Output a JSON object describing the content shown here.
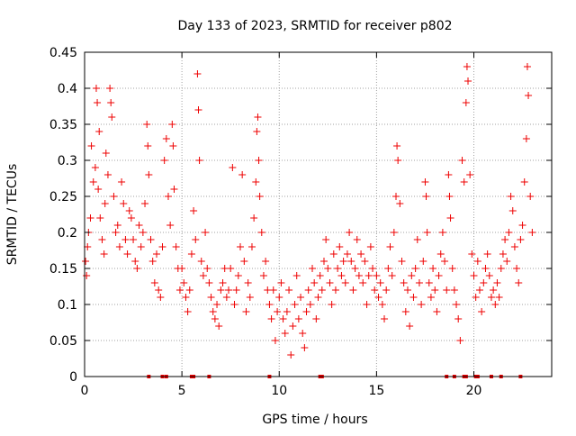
{
  "chart_data": {
    "type": "scatter",
    "title": "Day 133 of 2023, SRMTID for receiver p802",
    "xlabel": "GPS time / hours",
    "ylabel": "SRMTID / TECUs",
    "xlim": [
      0,
      24
    ],
    "ylim": [
      0,
      0.45
    ],
    "x_ticks": [
      0,
      5,
      10,
      15,
      20
    ],
    "y_ticks": [
      0,
      0.05,
      0.1,
      0.15,
      0.2,
      0.25,
      0.3,
      0.35,
      0.4,
      0.45
    ],
    "x_tick_labels": [
      "0",
      "5",
      "10",
      "15",
      "20"
    ],
    "y_tick_labels": [
      "0",
      "0.05",
      "0.1",
      "0.15",
      "0.2",
      "0.25",
      "0.3",
      "0.35",
      "0.4",
      "0.45"
    ],
    "grid": true,
    "marker": "plus",
    "color": "#ee0000",
    "baseline_points_x": [
      3.3,
      4.0,
      4.2,
      5.5,
      5.6,
      6.4,
      9.5,
      12.1,
      12.2,
      18.6,
      19.0,
      19.5,
      19.6,
      20.1,
      20.2,
      20.9,
      21.4,
      22.4
    ],
    "series": [
      {
        "name": "SRMTID",
        "points": [
          [
            0.05,
            0.16
          ],
          [
            0.1,
            0.14
          ],
          [
            0.15,
            0.18
          ],
          [
            0.2,
            0.2
          ],
          [
            0.3,
            0.22
          ],
          [
            0.35,
            0.32
          ],
          [
            0.45,
            0.27
          ],
          [
            0.55,
            0.29
          ],
          [
            0.6,
            0.4
          ],
          [
            0.65,
            0.38
          ],
          [
            0.7,
            0.26
          ],
          [
            0.75,
            0.34
          ],
          [
            0.8,
            0.22
          ],
          [
            0.9,
            0.19
          ],
          [
            1.0,
            0.17
          ],
          [
            1.05,
            0.24
          ],
          [
            1.1,
            0.31
          ],
          [
            1.2,
            0.28
          ],
          [
            1.3,
            0.4
          ],
          [
            1.35,
            0.38
          ],
          [
            1.4,
            0.36
          ],
          [
            1.5,
            0.25
          ],
          [
            1.6,
            0.2
          ],
          [
            1.7,
            0.21
          ],
          [
            1.8,
            0.18
          ],
          [
            1.9,
            0.27
          ],
          [
            2.0,
            0.24
          ],
          [
            2.1,
            0.19
          ],
          [
            2.2,
            0.17
          ],
          [
            2.3,
            0.23
          ],
          [
            2.4,
            0.22
          ],
          [
            2.5,
            0.19
          ],
          [
            2.6,
            0.16
          ],
          [
            2.7,
            0.15
          ],
          [
            2.8,
            0.21
          ],
          [
            2.9,
            0.18
          ],
          [
            3.0,
            0.2
          ],
          [
            3.1,
            0.24
          ],
          [
            3.2,
            0.35
          ],
          [
            3.25,
            0.32
          ],
          [
            3.3,
            0.28
          ],
          [
            3.4,
            0.19
          ],
          [
            3.5,
            0.16
          ],
          [
            3.6,
            0.13
          ],
          [
            3.7,
            0.17
          ],
          [
            3.8,
            0.12
          ],
          [
            3.9,
            0.11
          ],
          [
            4.0,
            0.18
          ],
          [
            4.1,
            0.3
          ],
          [
            4.2,
            0.33
          ],
          [
            4.3,
            0.25
          ],
          [
            4.4,
            0.21
          ],
          [
            4.5,
            0.35
          ],
          [
            4.55,
            0.32
          ],
          [
            4.6,
            0.26
          ],
          [
            4.7,
            0.18
          ],
          [
            4.8,
            0.15
          ],
          [
            4.9,
            0.12
          ],
          [
            5.0,
            0.15
          ],
          [
            5.1,
            0.13
          ],
          [
            5.2,
            0.11
          ],
          [
            5.3,
            0.09
          ],
          [
            5.4,
            0.12
          ],
          [
            5.5,
            0.17
          ],
          [
            5.6,
            0.23
          ],
          [
            5.7,
            0.19
          ],
          [
            5.8,
            0.42
          ],
          [
            5.85,
            0.37
          ],
          [
            5.9,
            0.3
          ],
          [
            6.0,
            0.16
          ],
          [
            6.1,
            0.14
          ],
          [
            6.2,
            0.2
          ],
          [
            6.3,
            0.15
          ],
          [
            6.4,
            0.13
          ],
          [
            6.5,
            0.11
          ],
          [
            6.6,
            0.09
          ],
          [
            6.7,
            0.08
          ],
          [
            6.8,
            0.1
          ],
          [
            6.9,
            0.07
          ],
          [
            7.0,
            0.12
          ],
          [
            7.1,
            0.13
          ],
          [
            7.2,
            0.15
          ],
          [
            7.3,
            0.11
          ],
          [
            7.4,
            0.12
          ],
          [
            7.5,
            0.15
          ],
          [
            7.6,
            0.29
          ],
          [
            7.7,
            0.1
          ],
          [
            7.8,
            0.12
          ],
          [
            7.9,
            0.14
          ],
          [
            8.0,
            0.18
          ],
          [
            8.1,
            0.28
          ],
          [
            8.2,
            0.16
          ],
          [
            8.3,
            0.09
          ],
          [
            8.4,
            0.13
          ],
          [
            8.5,
            0.11
          ],
          [
            8.6,
            0.18
          ],
          [
            8.7,
            0.22
          ],
          [
            8.8,
            0.27
          ],
          [
            8.85,
            0.34
          ],
          [
            8.9,
            0.36
          ],
          [
            8.95,
            0.3
          ],
          [
            9.0,
            0.25
          ],
          [
            9.1,
            0.2
          ],
          [
            9.2,
            0.14
          ],
          [
            9.3,
            0.16
          ],
          [
            9.4,
            0.12
          ],
          [
            9.5,
            0.1
          ],
          [
            9.6,
            0.08
          ],
          [
            9.7,
            0.12
          ],
          [
            9.8,
            0.05
          ],
          [
            9.9,
            0.09
          ],
          [
            10.0,
            0.11
          ],
          [
            10.1,
            0.13
          ],
          [
            10.2,
            0.08
          ],
          [
            10.3,
            0.06
          ],
          [
            10.4,
            0.09
          ],
          [
            10.5,
            0.12
          ],
          [
            10.6,
            0.03
          ],
          [
            10.7,
            0.07
          ],
          [
            10.8,
            0.1
          ],
          [
            10.9,
            0.14
          ],
          [
            11.0,
            0.08
          ],
          [
            11.1,
            0.11
          ],
          [
            11.2,
            0.06
          ],
          [
            11.3,
            0.04
          ],
          [
            11.4,
            0.09
          ],
          [
            11.5,
            0.12
          ],
          [
            11.6,
            0.1
          ],
          [
            11.7,
            0.15
          ],
          [
            11.8,
            0.13
          ],
          [
            11.9,
            0.08
          ],
          [
            12.0,
            0.11
          ],
          [
            12.1,
            0.14
          ],
          [
            12.2,
            0.12
          ],
          [
            12.3,
            0.16
          ],
          [
            12.4,
            0.19
          ],
          [
            12.5,
            0.15
          ],
          [
            12.6,
            0.13
          ],
          [
            12.7,
            0.1
          ],
          [
            12.8,
            0.17
          ],
          [
            12.9,
            0.12
          ],
          [
            13.0,
            0.15
          ],
          [
            13.1,
            0.18
          ],
          [
            13.2,
            0.14
          ],
          [
            13.3,
            0.16
          ],
          [
            13.4,
            0.13
          ],
          [
            13.5,
            0.17
          ],
          [
            13.6,
            0.2
          ],
          [
            13.7,
            0.16
          ],
          [
            13.8,
            0.12
          ],
          [
            13.9,
            0.15
          ],
          [
            14.0,
            0.19
          ],
          [
            14.1,
            0.14
          ],
          [
            14.2,
            0.17
          ],
          [
            14.3,
            0.13
          ],
          [
            14.4,
            0.16
          ],
          [
            14.5,
            0.1
          ],
          [
            14.6,
            0.14
          ],
          [
            14.7,
            0.18
          ],
          [
            14.8,
            0.15
          ],
          [
            14.9,
            0.12
          ],
          [
            15.0,
            0.14
          ],
          [
            15.1,
            0.11
          ],
          [
            15.2,
            0.13
          ],
          [
            15.3,
            0.1
          ],
          [
            15.4,
            0.08
          ],
          [
            15.5,
            0.12
          ],
          [
            15.6,
            0.15
          ],
          [
            15.7,
            0.18
          ],
          [
            15.8,
            0.14
          ],
          [
            15.9,
            0.2
          ],
          [
            16.0,
            0.25
          ],
          [
            16.05,
            0.32
          ],
          [
            16.1,
            0.3
          ],
          [
            16.2,
            0.24
          ],
          [
            16.3,
            0.16
          ],
          [
            16.4,
            0.13
          ],
          [
            16.5,
            0.09
          ],
          [
            16.6,
            0.12
          ],
          [
            16.7,
            0.07
          ],
          [
            16.8,
            0.14
          ],
          [
            16.9,
            0.11
          ],
          [
            17.0,
            0.15
          ],
          [
            17.1,
            0.19
          ],
          [
            17.2,
            0.13
          ],
          [
            17.3,
            0.1
          ],
          [
            17.4,
            0.16
          ],
          [
            17.5,
            0.27
          ],
          [
            17.55,
            0.25
          ],
          [
            17.6,
            0.2
          ],
          [
            17.7,
            0.13
          ],
          [
            17.8,
            0.11
          ],
          [
            17.9,
            0.15
          ],
          [
            18.0,
            0.12
          ],
          [
            18.1,
            0.09
          ],
          [
            18.2,
            0.14
          ],
          [
            18.3,
            0.17
          ],
          [
            18.4,
            0.2
          ],
          [
            18.5,
            0.16
          ],
          [
            18.6,
            0.12
          ],
          [
            18.7,
            0.28
          ],
          [
            18.75,
            0.25
          ],
          [
            18.8,
            0.22
          ],
          [
            18.9,
            0.15
          ],
          [
            19.0,
            0.12
          ],
          [
            19.1,
            0.1
          ],
          [
            19.2,
            0.08
          ],
          [
            19.3,
            0.05
          ],
          [
            19.4,
            0.3
          ],
          [
            19.5,
            0.27
          ],
          [
            19.6,
            0.38
          ],
          [
            19.65,
            0.43
          ],
          [
            19.7,
            0.41
          ],
          [
            19.8,
            0.28
          ],
          [
            19.9,
            0.17
          ],
          [
            20.0,
            0.14
          ],
          [
            20.1,
            0.11
          ],
          [
            20.2,
            0.16
          ],
          [
            20.3,
            0.12
          ],
          [
            20.4,
            0.09
          ],
          [
            20.5,
            0.13
          ],
          [
            20.6,
            0.15
          ],
          [
            20.7,
            0.17
          ],
          [
            20.8,
            0.14
          ],
          [
            20.9,
            0.11
          ],
          [
            21.0,
            0.12
          ],
          [
            21.1,
            0.1
          ],
          [
            21.2,
            0.13
          ],
          [
            21.3,
            0.11
          ],
          [
            21.4,
            0.15
          ],
          [
            21.5,
            0.17
          ],
          [
            21.6,
            0.19
          ],
          [
            21.7,
            0.16
          ],
          [
            21.8,
            0.2
          ],
          [
            21.9,
            0.25
          ],
          [
            22.0,
            0.23
          ],
          [
            22.1,
            0.18
          ],
          [
            22.2,
            0.15
          ],
          [
            22.3,
            0.13
          ],
          [
            22.4,
            0.19
          ],
          [
            22.5,
            0.21
          ],
          [
            22.6,
            0.27
          ],
          [
            22.7,
            0.33
          ],
          [
            22.75,
            0.43
          ],
          [
            22.8,
            0.39
          ],
          [
            22.9,
            0.25
          ],
          [
            23.0,
            0.2
          ]
        ]
      }
    ]
  }
}
